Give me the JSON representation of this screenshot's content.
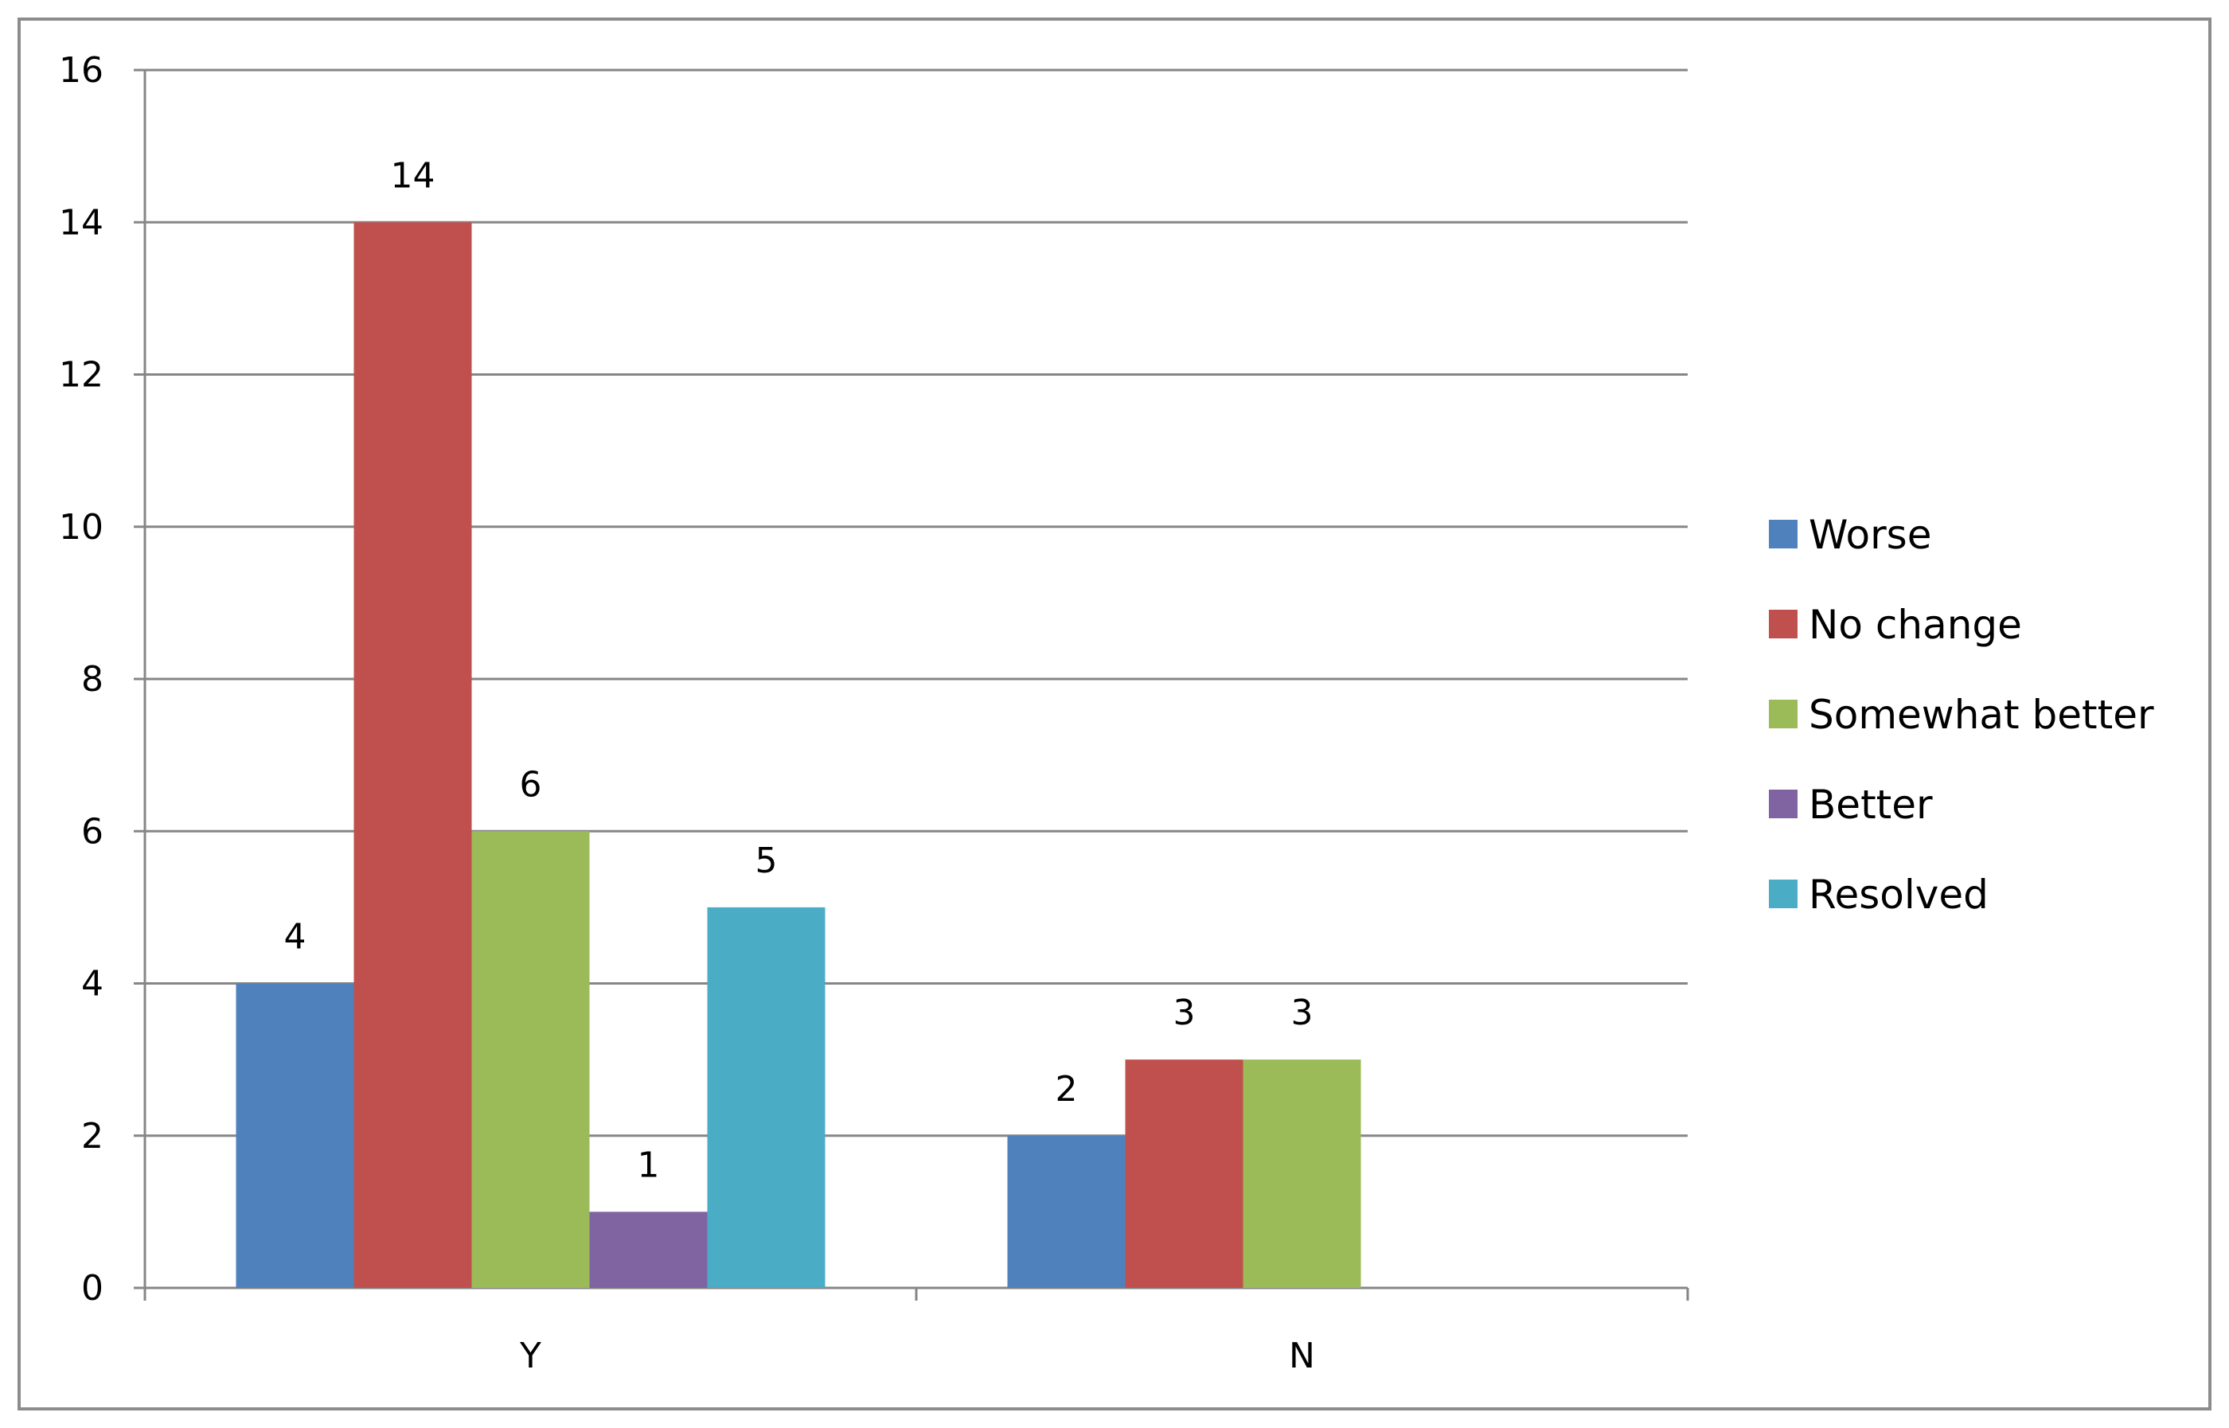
{
  "chart_data": {
    "type": "bar",
    "title": "",
    "xlabel": "",
    "ylabel": "",
    "categories": [
      "Y",
      "N"
    ],
    "series": [
      {
        "name": "Worse",
        "values": [
          4,
          2
        ],
        "color": "#4f81bd"
      },
      {
        "name": "No change",
        "values": [
          14,
          3
        ],
        "color": "#c0504d"
      },
      {
        "name": "Somewhat better",
        "values": [
          6,
          3
        ],
        "color": "#9bbb59"
      },
      {
        "name": "Better",
        "values": [
          1,
          null
        ],
        "color": "#8064a2"
      },
      {
        "name": "Resolved",
        "values": [
          5,
          null
        ],
        "color": "#4bacc6"
      }
    ],
    "ylim": [
      0,
      16
    ],
    "yticks": [
      0,
      2,
      4,
      6,
      8,
      10,
      12,
      14,
      16
    ],
    "grid": true,
    "data_labels": true,
    "legend_position": "right"
  }
}
